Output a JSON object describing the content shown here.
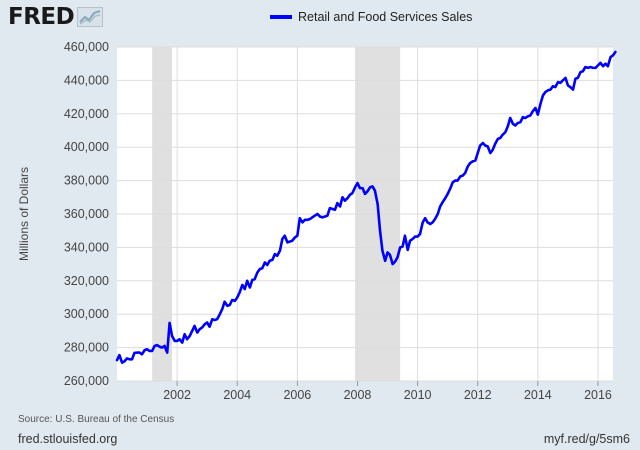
{
  "logo": {
    "text": "FRED",
    "icon": "fred-chart-icon"
  },
  "footer": {
    "source": "Source: U.S. Bureau of the Census",
    "site": "fred.stlouisfed.org",
    "short_url": "myf.red/g/5sm6"
  },
  "colors": {
    "series": "#0000ff",
    "background": "#e1e9f0",
    "plot_bg": "#ffffff",
    "recession": "#e0e0e0",
    "grid": "#dddddd"
  },
  "chart_data": {
    "type": "line",
    "title": "",
    "xlabel": "",
    "ylabel": "Millions of Dollars",
    "xlim": [
      2000.0,
      2016.5
    ],
    "ylim": [
      260000,
      460000
    ],
    "grid": true,
    "legend": "top",
    "x_ticks": [
      2002,
      2004,
      2006,
      2008,
      2010,
      2012,
      2014,
      2016
    ],
    "x_tick_labels": [
      "2002",
      "2004",
      "2006",
      "2008",
      "2010",
      "2012",
      "2014",
      "2016"
    ],
    "y_ticks": [
      260000,
      280000,
      300000,
      320000,
      340000,
      360000,
      380000,
      400000,
      420000,
      440000,
      460000
    ],
    "y_tick_labels": [
      "260,000",
      "280,000",
      "300,000",
      "320,000",
      "340,000",
      "360,000",
      "380,000",
      "400,000",
      "420,000",
      "440,000",
      "460,000"
    ],
    "recessions": [
      [
        2001.17,
        2001.83
      ],
      [
        2007.92,
        2009.42
      ]
    ],
    "series": [
      {
        "name": "Retail and Food Services Sales",
        "color": "#0000ff",
        "points": [
          [
            2000.0,
            272500
          ],
          [
            2000.08,
            275500
          ],
          [
            2000.17,
            271000
          ],
          [
            2000.25,
            271800
          ],
          [
            2000.33,
            273500
          ],
          [
            2000.42,
            273000
          ],
          [
            2000.5,
            273000
          ],
          [
            2000.58,
            276800
          ],
          [
            2000.67,
            277000
          ],
          [
            2000.75,
            277000
          ],
          [
            2000.83,
            276000
          ],
          [
            2000.92,
            278500
          ],
          [
            2001.0,
            279000
          ],
          [
            2001.08,
            278000
          ],
          [
            2001.17,
            278000
          ],
          [
            2001.25,
            281000
          ],
          [
            2001.33,
            281500
          ],
          [
            2001.42,
            280500
          ],
          [
            2001.5,
            280000
          ],
          [
            2001.58,
            281000
          ],
          [
            2001.67,
            277000
          ],
          [
            2001.75,
            294800
          ],
          [
            2001.83,
            287000
          ],
          [
            2001.92,
            284000
          ],
          [
            2002.0,
            284000
          ],
          [
            2002.08,
            285000
          ],
          [
            2002.17,
            283000
          ],
          [
            2002.25,
            288000
          ],
          [
            2002.33,
            285000
          ],
          [
            2002.42,
            287000
          ],
          [
            2002.5,
            290000
          ],
          [
            2002.58,
            293000
          ],
          [
            2002.67,
            289000
          ],
          [
            2002.75,
            291000
          ],
          [
            2002.83,
            292000
          ],
          [
            2002.92,
            294000
          ],
          [
            2003.0,
            295000
          ],
          [
            2003.08,
            292500
          ],
          [
            2003.17,
            297000
          ],
          [
            2003.25,
            296500
          ],
          [
            2003.33,
            297000
          ],
          [
            2003.42,
            300000
          ],
          [
            2003.5,
            303000
          ],
          [
            2003.58,
            307500
          ],
          [
            2003.67,
            305000
          ],
          [
            2003.75,
            305500
          ],
          [
            2003.83,
            308500
          ],
          [
            2003.92,
            308000
          ],
          [
            2004.0,
            310000
          ],
          [
            2004.08,
            313000
          ],
          [
            2004.17,
            317500
          ],
          [
            2004.25,
            315000
          ],
          [
            2004.33,
            320000
          ],
          [
            2004.42,
            316000
          ],
          [
            2004.5,
            320500
          ],
          [
            2004.58,
            321000
          ],
          [
            2004.67,
            325000
          ],
          [
            2004.75,
            327000
          ],
          [
            2004.83,
            327500
          ],
          [
            2004.92,
            331000
          ],
          [
            2005.0,
            329500
          ],
          [
            2005.08,
            332000
          ],
          [
            2005.17,
            332500
          ],
          [
            2005.25,
            336000
          ],
          [
            2005.33,
            335000
          ],
          [
            2005.42,
            338000
          ],
          [
            2005.5,
            345000
          ],
          [
            2005.58,
            347000
          ],
          [
            2005.67,
            343000
          ],
          [
            2005.75,
            343500
          ],
          [
            2005.83,
            344000
          ],
          [
            2005.92,
            346000
          ],
          [
            2006.0,
            347000
          ],
          [
            2006.08,
            357500
          ],
          [
            2006.17,
            355000
          ],
          [
            2006.25,
            356500
          ],
          [
            2006.33,
            356500
          ],
          [
            2006.42,
            357000
          ],
          [
            2006.5,
            358000
          ],
          [
            2006.58,
            359000
          ],
          [
            2006.67,
            360000
          ],
          [
            2006.75,
            358500
          ],
          [
            2006.83,
            358000
          ],
          [
            2006.92,
            358500
          ],
          [
            2007.0,
            359000
          ],
          [
            2007.08,
            363500
          ],
          [
            2007.17,
            363000
          ],
          [
            2007.25,
            362500
          ],
          [
            2007.33,
            366500
          ],
          [
            2007.42,
            364500
          ],
          [
            2007.5,
            370000
          ],
          [
            2007.58,
            368000
          ],
          [
            2007.67,
            369500
          ],
          [
            2007.75,
            371500
          ],
          [
            2007.83,
            372500
          ],
          [
            2007.92,
            376000
          ],
          [
            2008.0,
            378500
          ],
          [
            2008.08,
            375500
          ],
          [
            2008.17,
            375500
          ],
          [
            2008.25,
            372000
          ],
          [
            2008.33,
            373500
          ],
          [
            2008.42,
            376000
          ],
          [
            2008.5,
            376500
          ],
          [
            2008.58,
            374000
          ],
          [
            2008.67,
            366000
          ],
          [
            2008.75,
            350000
          ],
          [
            2008.83,
            338000
          ],
          [
            2008.92,
            332000
          ],
          [
            2009.0,
            337000
          ],
          [
            2009.08,
            335500
          ],
          [
            2009.17,
            330000
          ],
          [
            2009.25,
            331500
          ],
          [
            2009.33,
            334000
          ],
          [
            2009.42,
            340000
          ],
          [
            2009.5,
            340500
          ],
          [
            2009.58,
            347000
          ],
          [
            2009.67,
            338500
          ],
          [
            2009.75,
            344000
          ],
          [
            2009.83,
            345000
          ],
          [
            2009.92,
            346500
          ],
          [
            2010.0,
            346500
          ],
          [
            2010.08,
            348000
          ],
          [
            2010.17,
            355000
          ],
          [
            2010.25,
            357500
          ],
          [
            2010.33,
            355000
          ],
          [
            2010.42,
            354000
          ],
          [
            2010.5,
            355000
          ],
          [
            2010.58,
            357000
          ],
          [
            2010.67,
            360000
          ],
          [
            2010.75,
            364500
          ],
          [
            2010.83,
            367000
          ],
          [
            2010.92,
            369500
          ],
          [
            2011.0,
            372000
          ],
          [
            2011.08,
            375000
          ],
          [
            2011.17,
            379000
          ],
          [
            2011.25,
            380000
          ],
          [
            2011.33,
            380000
          ],
          [
            2011.42,
            382500
          ],
          [
            2011.5,
            383000
          ],
          [
            2011.58,
            384500
          ],
          [
            2011.67,
            388500
          ],
          [
            2011.75,
            390500
          ],
          [
            2011.83,
            391500
          ],
          [
            2011.92,
            392000
          ],
          [
            2012.0,
            396500
          ],
          [
            2012.08,
            401000
          ],
          [
            2012.17,
            402500
          ],
          [
            2012.25,
            401000
          ],
          [
            2012.33,
            400500
          ],
          [
            2012.42,
            396500
          ],
          [
            2012.5,
            398500
          ],
          [
            2012.58,
            402000
          ],
          [
            2012.67,
            405000
          ],
          [
            2012.75,
            405500
          ],
          [
            2012.83,
            407500
          ],
          [
            2012.92,
            409000
          ],
          [
            2013.0,
            412500
          ],
          [
            2013.08,
            417500
          ],
          [
            2013.17,
            414000
          ],
          [
            2013.25,
            413000
          ],
          [
            2013.33,
            414500
          ],
          [
            2013.42,
            415000
          ],
          [
            2013.5,
            418000
          ],
          [
            2013.58,
            417500
          ],
          [
            2013.67,
            418500
          ],
          [
            2013.75,
            419000
          ],
          [
            2013.83,
            421500
          ],
          [
            2013.92,
            423500
          ],
          [
            2014.0,
            419500
          ],
          [
            2014.08,
            425500
          ],
          [
            2014.17,
            431000
          ],
          [
            2014.25,
            433000
          ],
          [
            2014.33,
            434000
          ],
          [
            2014.42,
            434500
          ],
          [
            2014.5,
            436500
          ],
          [
            2014.58,
            436000
          ],
          [
            2014.67,
            439000
          ],
          [
            2014.75,
            438500
          ],
          [
            2014.83,
            440000
          ],
          [
            2014.92,
            441500
          ],
          [
            2015.0,
            437000
          ],
          [
            2015.08,
            436000
          ],
          [
            2015.17,
            434500
          ],
          [
            2015.25,
            441000
          ],
          [
            2015.33,
            441500
          ],
          [
            2015.42,
            445000
          ],
          [
            2015.5,
            445500
          ],
          [
            2015.58,
            448000
          ],
          [
            2015.67,
            447500
          ],
          [
            2015.75,
            448000
          ],
          [
            2015.83,
            447500
          ],
          [
            2015.92,
            447500
          ],
          [
            2016.0,
            449000
          ],
          [
            2016.08,
            450500
          ],
          [
            2016.17,
            448500
          ],
          [
            2016.25,
            450000
          ],
          [
            2016.33,
            448500
          ],
          [
            2016.42,
            454000
          ],
          [
            2016.5,
            455000
          ],
          [
            2016.58,
            457000
          ]
        ]
      }
    ]
  }
}
